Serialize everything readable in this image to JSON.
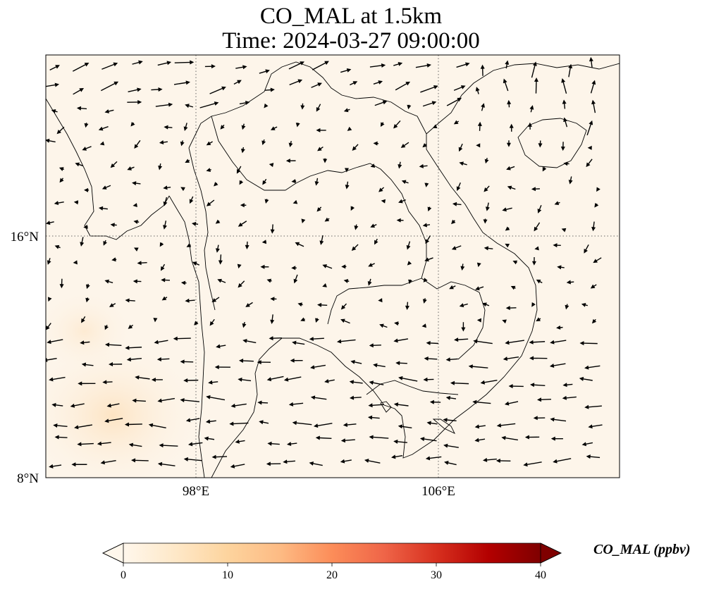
{
  "title": {
    "line1": "CO_MAL at 1.5km",
    "line2": "Time: 2024-03-27 09:00:00"
  },
  "map": {
    "variable": "CO_MAL",
    "level": "1.5km",
    "time": "2024-03-27 09:00:00",
    "background_color": "#fdf5ea",
    "land_outline_color": "#000000",
    "gridline_style": "dotted",
    "lon_range": [
      93,
      112
    ],
    "lat_range": [
      8,
      22
    ],
    "lon_ticks": [
      {
        "value": 98,
        "label": "98°E"
      },
      {
        "value": 106,
        "label": "106°E"
      }
    ],
    "lat_ticks": [
      {
        "value": 16,
        "label": "16°N"
      },
      {
        "value": 8,
        "label": "8°N"
      }
    ],
    "wind_vectors": "quiver arrows, mostly westward in south, mixed north"
  },
  "colorbar": {
    "label": "CO_MAL (ppbv)",
    "colormap": "OrRd",
    "colors": [
      "#fff7ec",
      "#fee8c8",
      "#fdd49e",
      "#fdbb84",
      "#fc8d59",
      "#ef6548",
      "#d7301f",
      "#b30000",
      "#7f0000"
    ],
    "min": 0,
    "max": 40,
    "extend": "both",
    "ticks": [
      {
        "value": 0,
        "label": "0"
      },
      {
        "value": 10,
        "label": "10"
      },
      {
        "value": 20,
        "label": "20"
      },
      {
        "value": 30,
        "label": "30"
      },
      {
        "value": 40,
        "label": "40"
      }
    ]
  }
}
